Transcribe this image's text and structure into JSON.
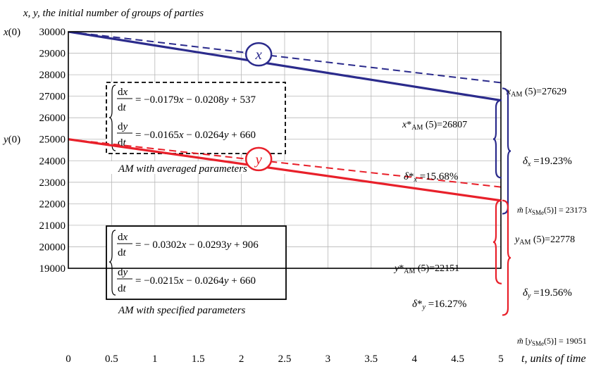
{
  "chart_data": {
    "type": "line",
    "title": "x, y, the initial number of groups of parties",
    "xlabel": "t, units of time",
    "ylabel": "",
    "xlim": [
      0,
      5
    ],
    "ylim": [
      19000,
      30000
    ],
    "grid": true,
    "x_ticks": [
      "0",
      "0.5",
      "1",
      "1.5",
      "2",
      "2.5",
      "3",
      "3.5",
      "4",
      "4.5",
      "5"
    ],
    "y_ticks": [
      "19000",
      "20000",
      "21000",
      "22000",
      "23000",
      "24000",
      "25000",
      "26000",
      "27000",
      "28000",
      "29000",
      "30000"
    ],
    "y_tick_prefix": {
      "30000": "x(0)",
      "25000": "y(0)"
    },
    "series": [
      {
        "key": "x_solid",
        "name": "x",
        "color": "#2b2b8c",
        "style": "solid",
        "x": [
          0,
          5
        ],
        "y": [
          30000,
          26807
        ]
      },
      {
        "key": "x_dash",
        "color": "#2b2b8c",
        "style": "dashed",
        "x": [
          0,
          5
        ],
        "y": [
          30000,
          27629
        ]
      },
      {
        "key": "y_solid",
        "name": "y",
        "color": "#e8202a",
        "style": "solid",
        "x": [
          0,
          5
        ],
        "y": [
          25000,
          22151
        ]
      },
      {
        "key": "y_dash",
        "color": "#e8202a",
        "style": "dashed",
        "x": [
          0,
          5
        ],
        "y": [
          25000,
          22778
        ]
      }
    ],
    "series_labels": [
      {
        "text": "x",
        "color": "#2b2b8c",
        "x": 2.2,
        "y": 28950
      },
      {
        "text": "y",
        "color": "#e8202a",
        "x": 2.2,
        "y": 24080
      }
    ],
    "equations": {
      "averaged": {
        "line1": "dx/dt = −0.0179x − 0.0208y + 537",
        "line2": "dy/dt = −0.0165x − 0.0264y + 660",
        "caption": "AM with averaged parameters"
      },
      "specified": {
        "line1": "dx/dt = − 0.0302x − 0.0293y + 906",
        "line2": "dy/dt = −0.0215x − 0.0264y + 660",
        "caption": "AM with specified parameters"
      }
    },
    "annotations": {
      "xAM": "xAM (5)=27629",
      "xStarAM": "x*AM (5)=26807",
      "deltaX": "δx =19.23%",
      "deltaStarX": "δ*x =15.68%",
      "mX": "m̃ [xSMe(5)] = 23173",
      "yAM": "yAM (5)=22778",
      "yStarAM": "y*AM (5)=22151",
      "deltaY": "δy =19.56%",
      "deltaStarY": "δ*y =16.27%",
      "mY": "m̃ [ySMe(5)] = 19051"
    },
    "brace_values": {
      "x_upper": 26807,
      "x_lower": 23173,
      "y_upper": 22151,
      "y_lower": 19051
    }
  }
}
